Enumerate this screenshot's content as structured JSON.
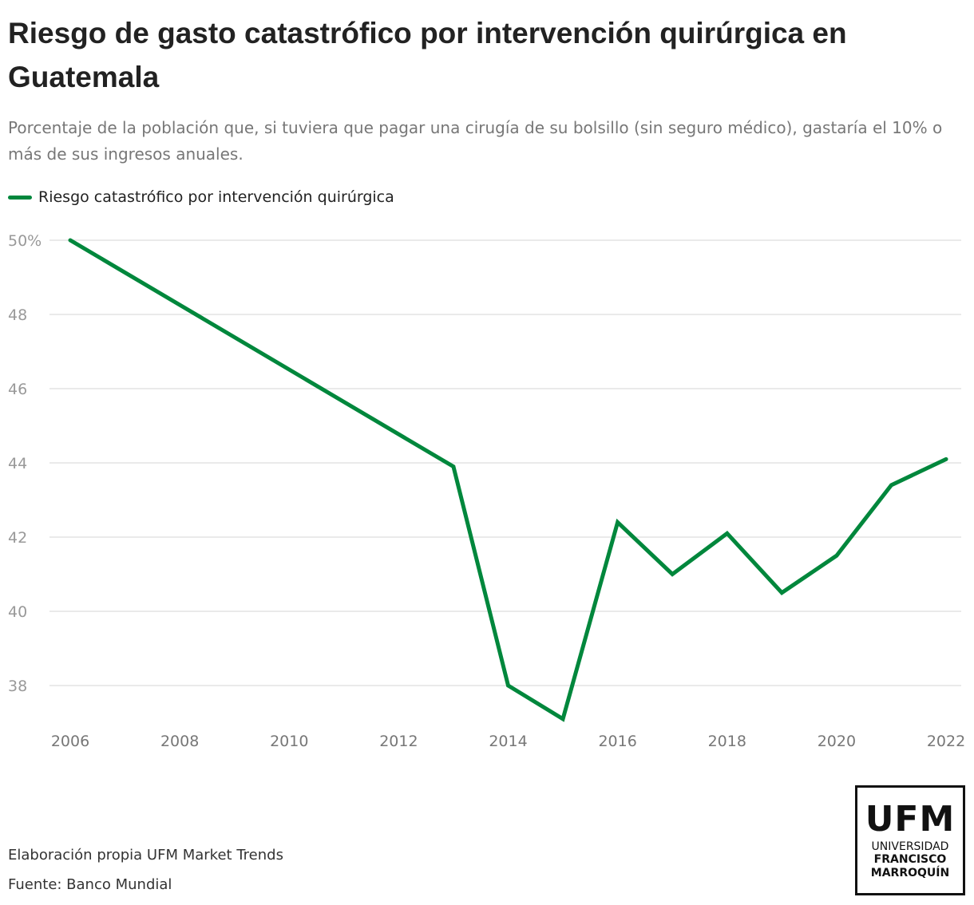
{
  "title": "Riesgo de gasto catastrófico por intervención quirúrgica en Guatemala",
  "subtitle": "Porcentaje de la población que, si tuviera que pagar una cirugía de su bolsillo (sin seguro médico), gastaría el 10% o más de sus ingresos anuales.",
  "footer": {
    "credit": "Elaboración propia UFM Market Trends",
    "source": "Fuente: Banco Mundial"
  },
  "logo": {
    "main": "UFM",
    "line1": "UNIVERSIDAD",
    "line2": "FRANCISCO",
    "line3": "MARROQUÍN"
  },
  "chart_data": {
    "type": "line",
    "title": "Riesgo de gasto catastrófico por intervención quirúrgica en Guatemala",
    "xlabel": "",
    "ylabel": "",
    "xlim": [
      2006,
      2022
    ],
    "ylim": [
      37,
      50
    ],
    "grid": true,
    "legend_position": "top-left",
    "x_ticks": [
      "2006",
      "2008",
      "2010",
      "2012",
      "2014",
      "2016",
      "2018",
      "2020",
      "2022"
    ],
    "y_ticks": [
      {
        "value": 50,
        "label": "50%"
      },
      {
        "value": 48,
        "label": "48"
      },
      {
        "value": 46,
        "label": "46"
      },
      {
        "value": 44,
        "label": "44"
      },
      {
        "value": 42,
        "label": "42"
      },
      {
        "value": 40,
        "label": "40"
      },
      {
        "value": 38,
        "label": "38"
      }
    ],
    "series": [
      {
        "name": "Riesgo catastrófico por intervención quirúrgica",
        "color": "#00873c",
        "x": [
          2006,
          2013,
          2014,
          2015,
          2016,
          2017,
          2018,
          2019,
          2020,
          2021,
          2022
        ],
        "y": [
          50.0,
          43.9,
          38.0,
          37.1,
          42.4,
          41.0,
          42.1,
          40.5,
          41.5,
          43.4,
          44.1
        ]
      }
    ]
  }
}
